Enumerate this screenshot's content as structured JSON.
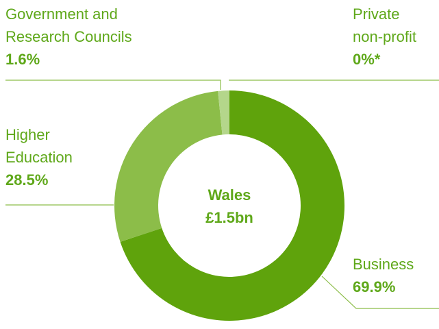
{
  "chart_data": {
    "type": "pie",
    "style": "donut",
    "center_title": "Wales",
    "center_value": "£1.5bn",
    "slices": [
      {
        "label_lines": [
          "Business"
        ],
        "value": 69.9,
        "value_label": "69.9%",
        "color": "#5fa30c"
      },
      {
        "label_lines": [
          "Higher",
          "Education"
        ],
        "value": 28.5,
        "value_label": "28.5%",
        "color": "#8cbd49"
      },
      {
        "label_lines": [
          "Government and",
          "Research Councils"
        ],
        "value": 1.6,
        "value_label": "1.6%",
        "color": "#b4d68b"
      },
      {
        "label_lines": [
          "Private",
          "non-profit"
        ],
        "value": 0,
        "value_label": "0%*",
        "color": "#d4e7b8"
      }
    ]
  },
  "colors": {
    "text": "#5fa81a",
    "leader_line": "#8cbd49"
  }
}
